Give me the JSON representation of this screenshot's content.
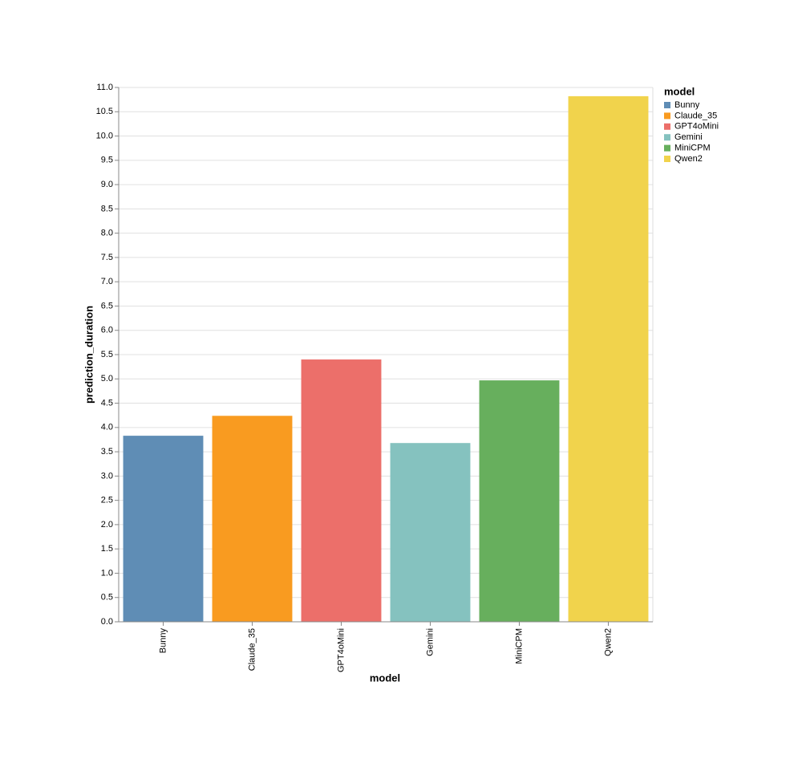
{
  "chart_data": {
    "type": "bar",
    "x_label": "model",
    "y_label": "prediction_duration",
    "legend_title": "model",
    "categories": [
      "Bunny",
      "Claude_35",
      "GPT4oMini",
      "Gemini",
      "MiniCPM",
      "Qwen2"
    ],
    "values": [
      3.83,
      4.24,
      5.4,
      3.68,
      4.97,
      10.82
    ],
    "colors": [
      "#5f8db5",
      "#f99b20",
      "#ec6f6a",
      "#85c2bf",
      "#67af5d",
      "#f1d34c"
    ],
    "ylim": [
      0,
      11
    ],
    "yticks": [
      {
        "value": 0,
        "label": "0.0"
      },
      0.5,
      {
        "value": 1,
        "label": "1.0"
      },
      1.5,
      {
        "value": 2,
        "label": "2.0"
      },
      2.5,
      {
        "value": 3,
        "label": "3.0"
      },
      3.5,
      {
        "value": 4,
        "label": "4.0"
      },
      4.5,
      {
        "value": 5,
        "label": "5.0"
      },
      5.5,
      {
        "value": 6,
        "label": "6.0"
      },
      6.5,
      {
        "value": 7,
        "label": "7.0"
      },
      7.5,
      {
        "value": 8,
        "label": "8.0"
      },
      8.5,
      {
        "value": 9,
        "label": "9.0"
      },
      9.5,
      {
        "value": 10,
        "label": "10.0"
      },
      10.5,
      {
        "value": 11,
        "label": "11.0"
      }
    ],
    "grid": true,
    "legend": "right"
  }
}
